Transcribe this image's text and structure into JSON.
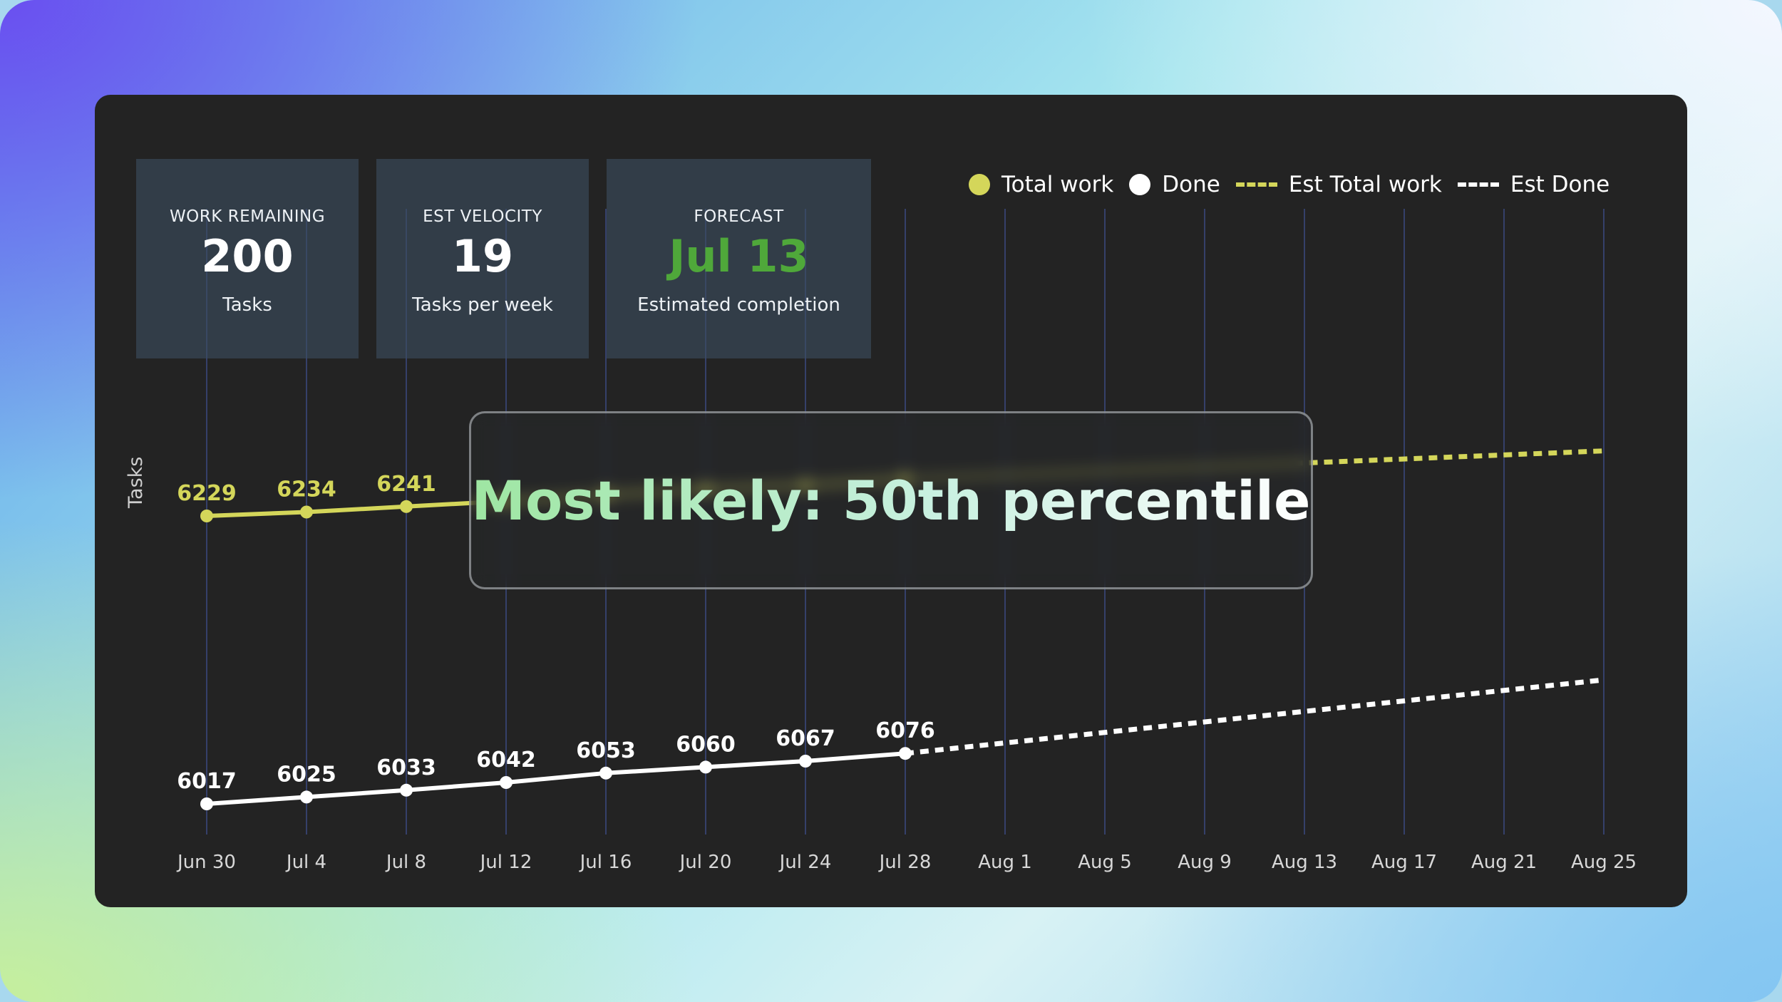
{
  "stats": [
    {
      "label": "WORK REMAINING",
      "value": "200",
      "sub": "Tasks"
    },
    {
      "label": "EST VELOCITY",
      "value": "19",
      "sub": "Tasks per week"
    },
    {
      "label": "FORECAST",
      "value": "Jul 13",
      "sub": "Estimated completion"
    }
  ],
  "overlay": {
    "text": "Most likely: 50th percentile"
  },
  "legend": [
    {
      "label": "Total work",
      "style": "dot",
      "color": "#d4d65a"
    },
    {
      "label": "Done",
      "style": "dot",
      "color": "#ffffff"
    },
    {
      "label": "Est Total work",
      "style": "dash",
      "color": "#d4d65a"
    },
    {
      "label": "Est Done",
      "style": "dash",
      "color": "#ffffff"
    }
  ],
  "colors": {
    "total_work": "#d4d65a",
    "done": "#ffffff",
    "forecast_green": "#4fa83a",
    "gridline": "#35406a"
  },
  "chart_data": {
    "type": "line",
    "title": "",
    "xlabel": "",
    "ylabel": "Tasks",
    "categories": [
      "Jun 30",
      "Jul 4",
      "Jul 8",
      "Jul 12",
      "Jul 16",
      "Jul 20",
      "Jul 24",
      "Jul 28",
      "Aug 1",
      "Aug 5",
      "Aug 9",
      "Aug 13",
      "Aug 17",
      "Aug 21",
      "Aug 25"
    ],
    "grid": "vertical",
    "legend_position": "top-right",
    "series": [
      {
        "name": "Total work",
        "style": "solid",
        "color": "#d4d65a",
        "x": [
          "Jun 30",
          "Jul 4",
          "Jul 8",
          "Jul 12",
          "Jul 16",
          "Jul 20",
          "Jul 24",
          "Jul 28"
        ],
        "values": [
          6229,
          6234,
          6241,
          6248,
          6256,
          6263,
          6268,
          6276
        ],
        "labels_visible": [
          true,
          true,
          true,
          false,
          false,
          false,
          false,
          false
        ]
      },
      {
        "name": "Done",
        "style": "solid",
        "color": "#ffffff",
        "x": [
          "Jun 30",
          "Jul 4",
          "Jul 8",
          "Jul 12",
          "Jul 16",
          "Jul 20",
          "Jul 24",
          "Jul 28"
        ],
        "values": [
          6017,
          6025,
          6033,
          6042,
          6053,
          6060,
          6067,
          6076
        ],
        "labels_visible": [
          true,
          true,
          true,
          true,
          true,
          true,
          true,
          true
        ]
      },
      {
        "name": "Est Total work",
        "style": "dashed",
        "color": "#d4d65a",
        "x": [
          "Jul 28",
          "Aug 25"
        ],
        "values": [
          6276,
          6312
        ]
      },
      {
        "name": "Est Done",
        "style": "dashed",
        "color": "#ffffff",
        "x": [
          "Jul 28",
          "Aug 25"
        ],
        "values": [
          6076,
          6162
        ]
      }
    ]
  }
}
